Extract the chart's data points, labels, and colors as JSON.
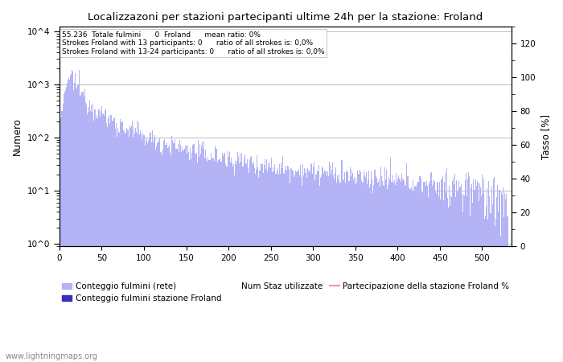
{
  "title": "Localizzazoni per stazioni partecipanti ultime 24h per la stazione: Froland",
  "ylabel_left": "Numero",
  "ylabel_right": "Tasso [%]",
  "annotation_lines": [
    "55.236  Totale fulmini      0  Froland      mean ratio: 0%",
    "Strokes Froland with 13 participants: 0      ratio of all strokes is: 0,0%",
    "Strokes Froland with 13-24 participants: 0      ratio of all strokes is: 0,0%"
  ],
  "bar_color_light": "#b3b3f5",
  "bar_color_dark": "#3333bb",
  "line_color": "#ff88cc",
  "watermark": "www.lightningmaps.org",
  "legend_entries": [
    "Conteggio fulmini (rete)",
    "Conteggio fulmini stazione Froland",
    "Num Staz utilizzate",
    "Partecipazione della stazione Froland %"
  ],
  "xlim": [
    0,
    535
  ],
  "ylim_left": [
    0.9,
    12000
  ],
  "ylim_right": [
    0,
    130
  ],
  "right_ticks": [
    0,
    20,
    40,
    60,
    80,
    100,
    120
  ],
  "num_stations": 530,
  "background_color": "#ffffff",
  "grid_color": "#bbbbbb"
}
